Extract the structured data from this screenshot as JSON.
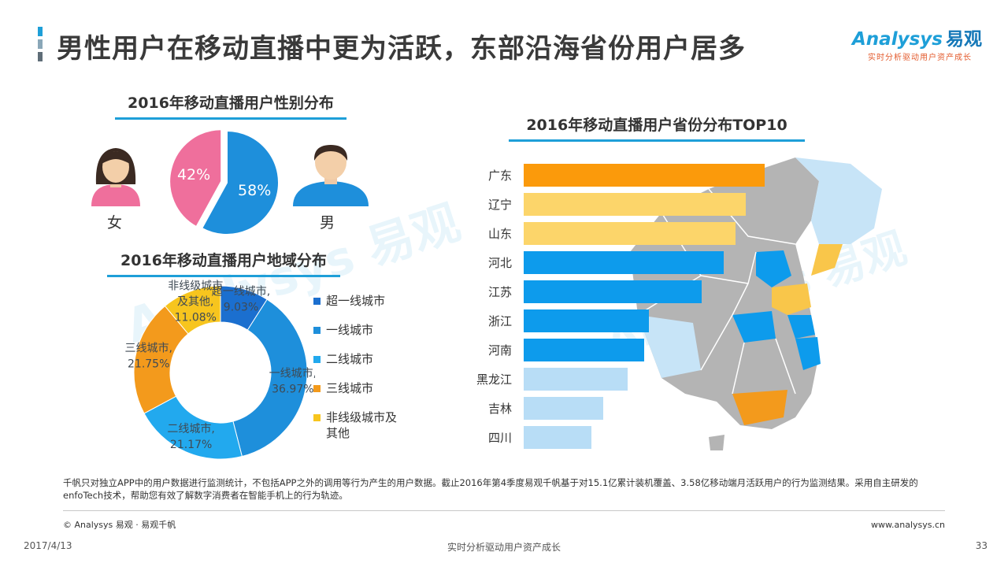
{
  "page": {
    "title": "男性用户在移动直播中更为活跃，东部沿海省份用户居多",
    "logo_main": "Analysys",
    "logo_cn": "易观",
    "logo_sub": "实时分析驱动用户资产成长",
    "watermark_en": "Analysys",
    "watermark_cn": "易观",
    "watermark_sub": "实时分析驱动用户资产成长",
    "note": "千帆只对独立APP中的用户数据进行监测统计，不包括APP之外的调用等行为产生的用户数据。截止2016年第4季度易观千帆基于对15.1亿累计装机覆盖、3.58亿移动端月活跃用户的行为监测结果。采用自主研发的enfoTech技术，帮助您有效了解数字消费者在智能手机上的行为轨迹。",
    "copyright": "© Analysys 易观 · 易观千帆",
    "website": "www.analysys.cn",
    "date": "2017/4/13",
    "slogan": "实时分析驱动用户资产成长",
    "page_number": "33"
  },
  "colors": {
    "accent": "#1e9fd8",
    "female": "#ef6f9c",
    "male": "#1e8fdb",
    "tier_super": "#1b6fcf",
    "tier1": "#1e8fdb",
    "tier2": "#22a9ee",
    "tier3": "#f39a1c",
    "tier_other": "#f7c51e",
    "bar_top": "#fb9a0b",
    "bar_second": "#fcd56a",
    "bar_mid": "#0d9bec",
    "bar_low": "#b8ddf6",
    "map_gray": "#b4b4b4",
    "map_light": "#c7e4f7"
  },
  "chart_data": [
    {
      "type": "pie",
      "title": "2016年移动直播用户性别分布",
      "categories": [
        "女",
        "男"
      ],
      "values": [
        42,
        58
      ],
      "labels": [
        "42%",
        "58%"
      ],
      "icons": [
        "female-avatar-icon",
        "male-avatar-icon"
      ]
    },
    {
      "type": "pie",
      "variant": "donut",
      "title": "2016年移动直播用户地域分布",
      "categories": [
        "超一线城市",
        "一线城市",
        "二线城市",
        "三线城市",
        "非线级城市及其他"
      ],
      "values": [
        9.03,
        36.97,
        21.17,
        21.75,
        11.08
      ],
      "slice_labels": [
        [
          "超一线城市,",
          "9.03%"
        ],
        [
          "一线城市,",
          "36.97%"
        ],
        [
          "二线城市,",
          "21.17%"
        ],
        [
          "三线城市,",
          "21.75%"
        ],
        [
          "非线级城市",
          "及其他,",
          "11.08%"
        ]
      ],
      "legend": [
        "超一线城市",
        "一线城市",
        "二线城市",
        "三线城市",
        "非线级城市及其他"
      ],
      "legend_position": "right"
    },
    {
      "type": "bar",
      "orientation": "horizontal",
      "title": "2016年移动直播用户省份分布TOP10",
      "categories": [
        "广东",
        "辽宁",
        "山东",
        "河北",
        "江苏",
        "浙江",
        "河南",
        "黑龙江",
        "吉林",
        "四川"
      ],
      "values": [
        100,
        92,
        88,
        83,
        74,
        52,
        50,
        43,
        33,
        28
      ],
      "value_scale": "relative, no axis printed",
      "background": "china-map-icon"
    }
  ]
}
